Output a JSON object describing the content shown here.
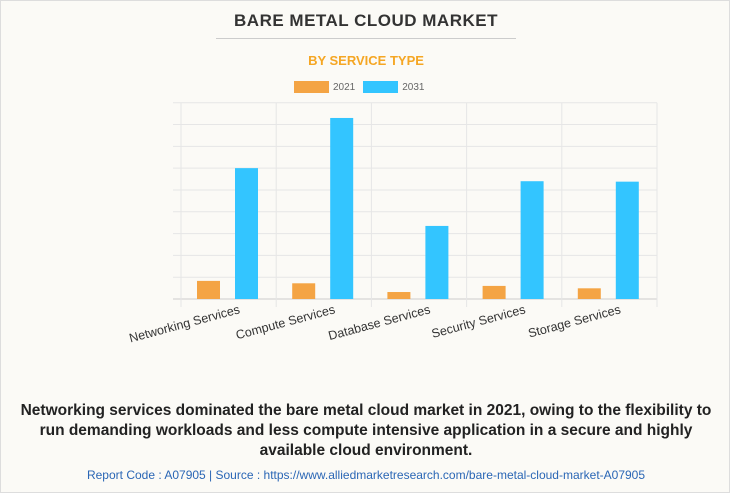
{
  "title": "BARE METAL CLOUD MARKET",
  "subtitle": "BY SERVICE TYPE",
  "caption": "Networking services dominated the bare metal cloud market in 2021, owing to the flexibility to run demanding workloads and less compute intensive application in a secure and highly available cloud environment.",
  "footer": "Report Code : A07905  |  Source : https://www.alliedmarketresearch.com/bare-metal-cloud-market-A07905",
  "chart_data": {
    "type": "bar",
    "categories": [
      "Networking Services",
      "Compute Services",
      "Database Services",
      "Security Services",
      "Storage Services"
    ],
    "series": [
      {
        "name": "2021",
        "color": "#f4a444",
        "values": [
          0.83,
          0.72,
          0.32,
          0.6,
          0.49
        ]
      },
      {
        "name": "2031",
        "color": "#33c5ff",
        "values": [
          6.0,
          8.3,
          3.35,
          5.4,
          5.38
        ]
      }
    ],
    "ylim": [
      0,
      9
    ],
    "y_tick_labels_shown": false,
    "grid": true,
    "legend": "top-center"
  }
}
